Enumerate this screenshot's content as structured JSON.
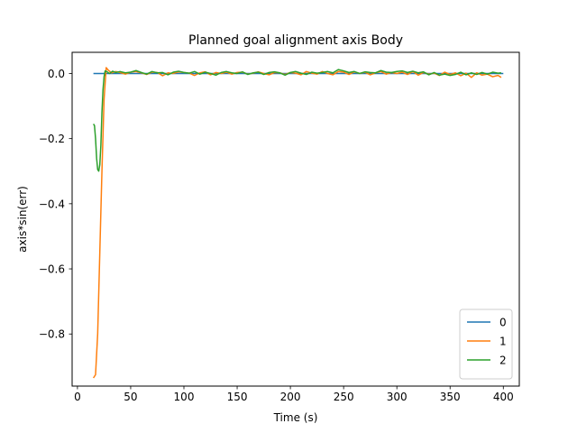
{
  "chart_data": {
    "type": "line",
    "title": "Planned goal alignment axis Body",
    "xlabel": "Time (s)",
    "ylabel": "axis*sin(err)",
    "xlim": [
      -5,
      415
    ],
    "ylim": [
      -0.96,
      0.065
    ],
    "xticks": [
      0,
      50,
      100,
      150,
      200,
      250,
      300,
      350,
      400
    ],
    "xtick_labels": [
      "0",
      "50",
      "100",
      "150",
      "200",
      "250",
      "300",
      "350",
      "400"
    ],
    "yticks": [
      0.0,
      -0.2,
      -0.4,
      -0.6,
      -0.8
    ],
    "ytick_labels": [
      "0.0",
      "−0.2",
      "−0.4",
      "−0.6",
      "−0.8"
    ],
    "grid": false,
    "legend": "lower-right",
    "series": [
      {
        "name": "0",
        "color": "#1f77b4",
        "points": [
          [
            15,
            0.0
          ],
          [
            400,
            0.0
          ]
        ]
      },
      {
        "name": "1",
        "color": "#ff7f0e",
        "points": [
          [
            15,
            -0.935
          ],
          [
            17,
            -0.925
          ],
          [
            19,
            -0.8
          ],
          [
            21,
            -0.55
          ],
          [
            23,
            -0.3
          ],
          [
            25,
            -0.08
          ],
          [
            27,
            0.018
          ],
          [
            29,
            0.01
          ],
          [
            32,
            0.002
          ],
          [
            36,
            0.006
          ],
          [
            40,
            0.003
          ],
          [
            45,
            -0.002
          ],
          [
            50,
            0.004
          ],
          [
            55,
            0.006
          ],
          [
            60,
            0.002
          ],
          [
            65,
            -0.003
          ],
          [
            70,
            0.004
          ],
          [
            75,
            0.003
          ],
          [
            80,
            -0.007
          ],
          [
            85,
            0.002
          ],
          [
            90,
            0.0
          ],
          [
            95,
            0.005
          ],
          [
            100,
            0.003
          ],
          [
            105,
            0.001
          ],
          [
            110,
            -0.006
          ],
          [
            115,
            0.002
          ],
          [
            120,
            0.005
          ],
          [
            125,
            -0.004
          ],
          [
            130,
            0.003
          ],
          [
            135,
            0.0
          ],
          [
            140,
            0.004
          ],
          [
            145,
            -0.002
          ],
          [
            150,
            0.003
          ],
          [
            155,
            0.004
          ],
          [
            160,
            -0.002
          ],
          [
            165,
            0.001
          ],
          [
            170,
            0.005
          ],
          [
            175,
            0.0
          ],
          [
            180,
            -0.004
          ],
          [
            185,
            0.003
          ],
          [
            190,
            0.002
          ],
          [
            195,
            -0.003
          ],
          [
            200,
            0.003
          ],
          [
            205,
            0.001
          ],
          [
            210,
            -0.004
          ],
          [
            215,
            0.006
          ],
          [
            220,
            0.001
          ],
          [
            225,
            -0.002
          ],
          [
            230,
            0.006
          ],
          [
            235,
            0.0
          ],
          [
            240,
            -0.004
          ],
          [
            245,
            0.006
          ],
          [
            250,
            0.004
          ],
          [
            255,
            -0.003
          ],
          [
            260,
            0.005
          ],
          [
            265,
            0.0
          ],
          [
            270,
            0.004
          ],
          [
            275,
            -0.004
          ],
          [
            280,
            0.002
          ],
          [
            285,
            0.006
          ],
          [
            290,
            -0.002
          ],
          [
            295,
            0.003
          ],
          [
            300,
            0.0
          ],
          [
            305,
            0.004
          ],
          [
            310,
            -0.003
          ],
          [
            315,
            0.006
          ],
          [
            320,
            -0.005
          ],
          [
            325,
            0.003
          ],
          [
            330,
            -0.002
          ],
          [
            335,
            0.001
          ],
          [
            340,
            -0.006
          ],
          [
            345,
            0.004
          ],
          [
            350,
            -0.003
          ],
          [
            355,
            0.002
          ],
          [
            360,
            -0.007
          ],
          [
            365,
            0.001
          ],
          [
            370,
            -0.012
          ],
          [
            375,
            0.002
          ],
          [
            380,
            -0.005
          ],
          [
            385,
            -0.002
          ],
          [
            390,
            -0.01
          ],
          [
            395,
            -0.006
          ],
          [
            398,
            -0.012
          ]
        ]
      },
      {
        "name": "2",
        "color": "#2ca02c",
        "points": [
          [
            15,
            -0.155
          ],
          [
            16,
            -0.16
          ],
          [
            17,
            -0.2
          ],
          [
            18,
            -0.26
          ],
          [
            19,
            -0.295
          ],
          [
            20,
            -0.3
          ],
          [
            21,
            -0.28
          ],
          [
            22,
            -0.22
          ],
          [
            23,
            -0.12
          ],
          [
            24,
            -0.05
          ],
          [
            25,
            -0.01
          ],
          [
            26,
            0.008
          ],
          [
            28,
            0.005
          ],
          [
            30,
            0.0
          ],
          [
            33,
            0.007
          ],
          [
            36,
            0.003
          ],
          [
            40,
            0.006
          ],
          [
            45,
            0.002
          ],
          [
            50,
            0.004
          ],
          [
            55,
            0.009
          ],
          [
            60,
            0.003
          ],
          [
            65,
            -0.002
          ],
          [
            70,
            0.006
          ],
          [
            75,
            0.002
          ],
          [
            80,
            0.003
          ],
          [
            85,
            -0.004
          ],
          [
            90,
            0.004
          ],
          [
            95,
            0.007
          ],
          [
            100,
            0.003
          ],
          [
            105,
            0.001
          ],
          [
            110,
            0.006
          ],
          [
            115,
            -0.002
          ],
          [
            120,
            0.004
          ],
          [
            125,
            0.0
          ],
          [
            130,
            -0.005
          ],
          [
            135,
            0.003
          ],
          [
            140,
            0.006
          ],
          [
            145,
            0.002
          ],
          [
            150,
            0.0
          ],
          [
            155,
            0.005
          ],
          [
            160,
            -0.003
          ],
          [
            165,
            0.002
          ],
          [
            170,
            0.004
          ],
          [
            175,
            -0.003
          ],
          [
            180,
            0.003
          ],
          [
            185,
            0.005
          ],
          [
            190,
            0.002
          ],
          [
            195,
            -0.005
          ],
          [
            200,
            0.003
          ],
          [
            205,
            0.006
          ],
          [
            210,
            0.001
          ],
          [
            215,
            -0.003
          ],
          [
            220,
            0.004
          ],
          [
            225,
            0.001
          ],
          [
            230,
            0.003
          ],
          [
            235,
            0.006
          ],
          [
            240,
            0.002
          ],
          [
            245,
            0.012
          ],
          [
            250,
            0.008
          ],
          [
            255,
            0.003
          ],
          [
            260,
            0.006
          ],
          [
            265,
            0.0
          ],
          [
            270,
            0.005
          ],
          [
            275,
            0.003
          ],
          [
            280,
            0.002
          ],
          [
            285,
            0.009
          ],
          [
            290,
            0.004
          ],
          [
            295,
            0.003
          ],
          [
            300,
            0.006
          ],
          [
            305,
            0.008
          ],
          [
            310,
            0.003
          ],
          [
            315,
            0.007
          ],
          [
            320,
            0.002
          ],
          [
            325,
            0.005
          ],
          [
            330,
            -0.004
          ],
          [
            335,
            0.003
          ],
          [
            340,
            -0.005
          ],
          [
            345,
            -0.002
          ],
          [
            350,
            -0.006
          ],
          [
            355,
            -0.003
          ],
          [
            360,
            0.004
          ],
          [
            365,
            -0.004
          ],
          [
            370,
            0.002
          ],
          [
            375,
            -0.003
          ],
          [
            380,
            0.003
          ],
          [
            385,
            -0.002
          ],
          [
            390,
            0.004
          ],
          [
            395,
            0.001
          ],
          [
            398,
            0.002
          ]
        ]
      }
    ]
  }
}
